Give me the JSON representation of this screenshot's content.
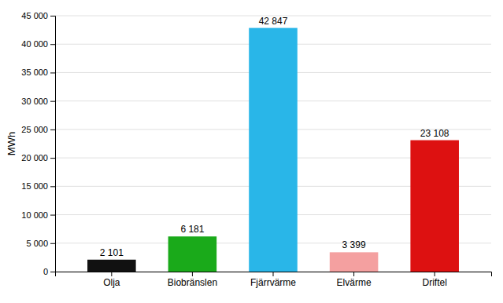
{
  "chart_data": {
    "type": "bar",
    "categories": [
      "Olja",
      "Biobränslen",
      "Fjärrvärme",
      "Elvärme",
      "Driftel"
    ],
    "values": [
      2101,
      6181,
      42847,
      3399,
      23108
    ],
    "colors": [
      "#111111",
      "#1aaa1a",
      "#29b6e8",
      "#f4a0a0",
      "#dd1111"
    ],
    "value_labels": [
      "2 101",
      "6 181",
      "42 847",
      "3 399",
      "23 108"
    ],
    "ylabel": "MWh",
    "ylim": [
      0,
      45000
    ],
    "yticks": [
      0,
      {
        "value": 5000,
        "label": "5 000"
      },
      {
        "value": 10000,
        "label": "10 000"
      },
      {
        "value": 15000,
        "label": "15 000"
      },
      {
        "value": 20000,
        "label": "20 000"
      },
      {
        "value": 25000,
        "label": "25 000"
      },
      {
        "value": 30000,
        "label": "30 000"
      },
      {
        "value": 35000,
        "label": "35 000"
      },
      {
        "value": 40000,
        "label": "40 000"
      },
      {
        "value": 45000,
        "label": "45 000"
      }
    ],
    "grid": true
  }
}
